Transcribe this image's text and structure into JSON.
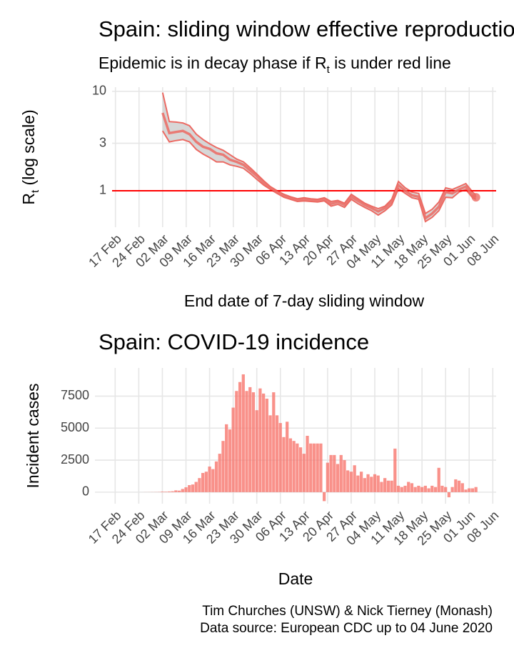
{
  "chart_data": [
    {
      "type": "line",
      "title": "Spain: sliding window effective reproduction number",
      "subtitle": [
        "Epidemic is in decay phase if R",
        "t",
        "  is under red line"
      ],
      "y_label": [
        "R",
        "t",
        " (log scale)"
      ],
      "x_label": "End date of 7-day sliding window",
      "ylog": true,
      "grid": true,
      "xlim": [
        "2020-02-16",
        "2020-06-09"
      ],
      "ylim": [
        0.43,
        11
      ],
      "yticks": [
        1,
        3,
        10
      ],
      "xticks": [
        {
          "value": "2020-02-17",
          "label": "17 Feb"
        },
        {
          "value": "2020-02-24",
          "label": "24 Feb"
        },
        {
          "value": "2020-03-02",
          "label": "02 Mar"
        },
        {
          "value": "2020-03-09",
          "label": "09 Mar"
        },
        {
          "value": "2020-03-16",
          "label": "16 Mar"
        },
        {
          "value": "2020-03-23",
          "label": "23 Mar"
        },
        {
          "value": "2020-03-30",
          "label": "30 Mar"
        },
        {
          "value": "2020-04-06",
          "label": "06 Apr"
        },
        {
          "value": "2020-04-13",
          "label": "13 Apr"
        },
        {
          "value": "2020-04-20",
          "label": "20 Apr"
        },
        {
          "value": "2020-04-27",
          "label": "27 Apr"
        },
        {
          "value": "2020-05-04",
          "label": "04 May"
        },
        {
          "value": "2020-05-11",
          "label": "11 May"
        },
        {
          "value": "2020-05-18",
          "label": "18 May"
        },
        {
          "value": "2020-05-25",
          "label": "25 May"
        },
        {
          "value": "2020-06-01",
          "label": "01 Jun"
        },
        {
          "value": "2020-06-08",
          "label": "08 Jun"
        }
      ],
      "color": "#ec6a63",
      "band_color": "#d3d3d3",
      "hline": 1,
      "hline_color": "#ff0000",
      "x": [
        "2020-03-02",
        "2020-03-04",
        "2020-03-06",
        "2020-03-08",
        "2020-03-10",
        "2020-03-12",
        "2020-03-14",
        "2020-03-16",
        "2020-03-18",
        "2020-03-20",
        "2020-03-22",
        "2020-03-24",
        "2020-03-26",
        "2020-03-28",
        "2020-03-30",
        "2020-04-01",
        "2020-04-03",
        "2020-04-05",
        "2020-04-07",
        "2020-04-09",
        "2020-04-11",
        "2020-04-13",
        "2020-04-15",
        "2020-04-17",
        "2020-04-19",
        "2020-04-21",
        "2020-04-23",
        "2020-04-25",
        "2020-04-27",
        "2020-04-29",
        "2020-05-01",
        "2020-05-03",
        "2020-05-05",
        "2020-05-07",
        "2020-05-09",
        "2020-05-11",
        "2020-05-13",
        "2020-05-15",
        "2020-05-17",
        "2020-05-19",
        "2020-05-21",
        "2020-05-23",
        "2020-05-25",
        "2020-05-27",
        "2020-05-29",
        "2020-05-31",
        "2020-06-02",
        "2020-06-03"
      ],
      "values": [
        6.06,
        3.8,
        3.9,
        4.0,
        3.7,
        3.1,
        2.77,
        2.63,
        2.38,
        2.3,
        2.05,
        1.95,
        1.82,
        1.6,
        1.4,
        1.2,
        1.07,
        0.97,
        0.89,
        0.85,
        0.8,
        0.82,
        0.8,
        0.79,
        0.82,
        0.74,
        0.77,
        0.72,
        0.87,
        0.79,
        0.72,
        0.67,
        0.62,
        0.67,
        0.77,
        1.14,
        1.0,
        0.9,
        0.87,
        0.53,
        0.59,
        0.69,
        0.97,
        0.94,
        1.03,
        1.1,
        0.9,
        0.86
      ],
      "upper": [
        9.7,
        4.96,
        4.9,
        4.8,
        4.5,
        3.7,
        3.27,
        2.96,
        2.72,
        2.55,
        2.3,
        2.08,
        1.95,
        1.7,
        1.47,
        1.26,
        1.1,
        1.0,
        0.92,
        0.87,
        0.83,
        0.85,
        0.83,
        0.82,
        0.85,
        0.78,
        0.8,
        0.75,
        0.92,
        0.83,
        0.75,
        0.7,
        0.66,
        0.7,
        0.82,
        1.24,
        1.07,
        0.97,
        0.94,
        0.59,
        0.65,
        0.77,
        1.07,
        1.03,
        1.1,
        1.18,
        0.97,
        0.9
      ],
      "lower": [
        4.0,
        3.1,
        3.2,
        3.27,
        3.1,
        2.6,
        2.34,
        2.15,
        1.95,
        1.95,
        1.82,
        1.76,
        1.68,
        1.49,
        1.3,
        1.14,
        1.03,
        0.94,
        0.86,
        0.82,
        0.78,
        0.79,
        0.78,
        0.77,
        0.79,
        0.7,
        0.73,
        0.68,
        0.82,
        0.74,
        0.68,
        0.63,
        0.57,
        0.63,
        0.72,
        1.05,
        0.94,
        0.85,
        0.82,
        0.49,
        0.54,
        0.63,
        0.86,
        0.85,
        0.97,
        1.03,
        0.85,
        0.82
      ]
    },
    {
      "type": "bar",
      "title": "Spain: COVID-19 incidence",
      "y_label": "Incident cases",
      "x_label": "Date",
      "grid": true,
      "xlim": [
        "2020-02-11",
        "2020-06-09"
      ],
      "ylim": [
        -900,
        9700
      ],
      "yticks": [
        0,
        2500,
        5000,
        7500
      ],
      "xticks": [
        {
          "value": "2020-02-17",
          "label": "17 Feb"
        },
        {
          "value": "2020-02-24",
          "label": "24 Feb"
        },
        {
          "value": "2020-03-02",
          "label": "02 Mar"
        },
        {
          "value": "2020-03-09",
          "label": "09 Mar"
        },
        {
          "value": "2020-03-16",
          "label": "16 Mar"
        },
        {
          "value": "2020-03-23",
          "label": "23 Mar"
        },
        {
          "value": "2020-03-30",
          "label": "30 Mar"
        },
        {
          "value": "2020-04-06",
          "label": "06 Apr"
        },
        {
          "value": "2020-04-13",
          "label": "13 Apr"
        },
        {
          "value": "2020-04-20",
          "label": "20 Apr"
        },
        {
          "value": "2020-04-27",
          "label": "27 Apr"
        },
        {
          "value": "2020-05-04",
          "label": "04 May"
        },
        {
          "value": "2020-05-11",
          "label": "11 May"
        },
        {
          "value": "2020-05-18",
          "label": "18 May"
        },
        {
          "value": "2020-05-25",
          "label": "25 May"
        },
        {
          "value": "2020-06-01",
          "label": "01 Jun"
        },
        {
          "value": "2020-06-08",
          "label": "08 Jun"
        }
      ],
      "color": "#f8766d",
      "x": [
        "2020-02-25",
        "2020-02-26",
        "2020-02-27",
        "2020-02-28",
        "2020-02-29",
        "2020-03-01",
        "2020-03-02",
        "2020-03-03",
        "2020-03-04",
        "2020-03-05",
        "2020-03-06",
        "2020-03-07",
        "2020-03-08",
        "2020-03-09",
        "2020-03-10",
        "2020-03-11",
        "2020-03-12",
        "2020-03-13",
        "2020-03-14",
        "2020-03-15",
        "2020-03-16",
        "2020-03-17",
        "2020-03-18",
        "2020-03-19",
        "2020-03-20",
        "2020-03-21",
        "2020-03-22",
        "2020-03-23",
        "2020-03-24",
        "2020-03-25",
        "2020-03-26",
        "2020-03-27",
        "2020-03-28",
        "2020-03-29",
        "2020-03-30",
        "2020-03-31",
        "2020-04-01",
        "2020-04-02",
        "2020-04-03",
        "2020-04-04",
        "2020-04-05",
        "2020-04-06",
        "2020-04-07",
        "2020-04-08",
        "2020-04-09",
        "2020-04-10",
        "2020-04-11",
        "2020-04-12",
        "2020-04-13",
        "2020-04-14",
        "2020-04-15",
        "2020-04-16",
        "2020-04-17",
        "2020-04-18",
        "2020-04-19",
        "2020-04-20",
        "2020-04-21",
        "2020-04-22",
        "2020-04-23",
        "2020-04-24",
        "2020-04-25",
        "2020-04-26",
        "2020-04-27",
        "2020-04-28",
        "2020-04-29",
        "2020-04-30",
        "2020-05-01",
        "2020-05-02",
        "2020-05-03",
        "2020-05-04",
        "2020-05-05",
        "2020-05-06",
        "2020-05-07",
        "2020-05-08",
        "2020-05-09",
        "2020-05-10",
        "2020-05-11",
        "2020-05-12",
        "2020-05-13",
        "2020-05-14",
        "2020-05-15",
        "2020-05-16",
        "2020-05-17",
        "2020-05-18",
        "2020-05-19",
        "2020-05-20",
        "2020-05-21",
        "2020-05-22",
        "2020-05-23",
        "2020-05-24",
        "2020-05-25",
        "2020-05-26",
        "2020-05-27",
        "2020-05-28",
        "2020-05-29",
        "2020-05-30",
        "2020-05-31",
        "2020-06-01",
        "2020-06-02",
        "2020-06-03"
      ],
      "values": [
        1,
        5,
        6,
        9,
        12,
        17,
        45,
        37,
        54,
        70,
        140,
        120,
        250,
        380,
        550,
        600,
        800,
        1100,
        1500,
        1600,
        2000,
        1800,
        2400,
        3000,
        4000,
        5300,
        4900,
        6600,
        7900,
        8600,
        9200,
        7900,
        8200,
        7800,
        6400,
        8100,
        7700,
        7300,
        6000,
        7800,
        6000,
        5400,
        4300,
        5500,
        4200,
        4000,
        3800,
        3500,
        3000,
        4400,
        3800,
        3800,
        3800,
        3800,
        -700,
        2300,
        2900,
        2900,
        2200,
        2900,
        2500,
        1700,
        1600,
        2100,
        1300,
        1600,
        1100,
        1400,
        1200,
        1400,
        1300,
        800,
        1100,
        900,
        900,
        3400,
        500,
        400,
        500,
        800,
        700,
        400,
        500,
        400,
        500,
        300,
        500,
        400,
        1900,
        500,
        400,
        -400,
        400,
        1000,
        900,
        700,
        200,
        300,
        300,
        400
      ]
    }
  ],
  "caption": [
    "Tim Churches (UNSW) & Nick Tierney (Monash)",
    "Data source: European CDC up to 04 June 2020"
  ]
}
